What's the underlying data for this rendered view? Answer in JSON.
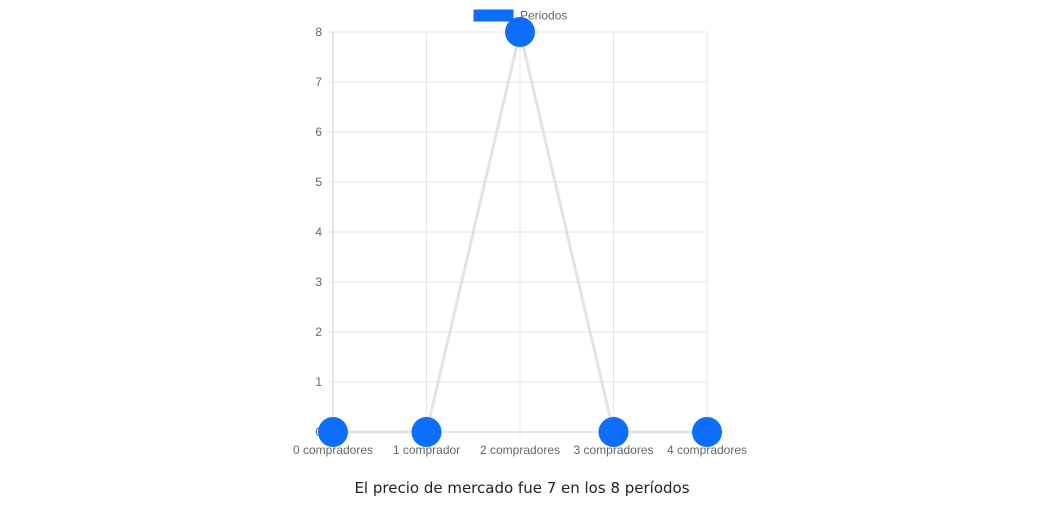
{
  "chart_data": {
    "type": "line",
    "categories": [
      "0 compradores",
      "1 comprador",
      "2 compradores",
      "3 compradores",
      "4 compradores"
    ],
    "series": [
      {
        "name": "Periodos",
        "values": [
          0,
          0,
          8,
          0,
          0
        ],
        "color": "#0d6efd",
        "line_color": "#e3e3e3"
      }
    ],
    "yticks": [
      0,
      1,
      2,
      3,
      4,
      5,
      6,
      7,
      8
    ],
    "ylim": [
      0,
      8
    ],
    "grid": true,
    "legend_position": "top-center"
  },
  "caption": "El precio de mercado fue 7 en los 8 períodos"
}
